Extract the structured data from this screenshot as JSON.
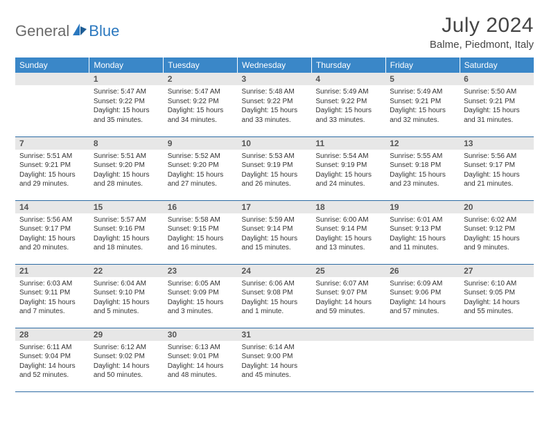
{
  "logo": {
    "general": "General",
    "blue": "Blue"
  },
  "calendar_style": {
    "header_bg": "#3a87c8",
    "header_color": "#ffffff",
    "daynum_bg": "#e7e7e7",
    "daynum_color": "#555555",
    "border_color": "#2b6aa3",
    "text_color": "#333333",
    "font_size_header": 12,
    "font_size_daynum": 12,
    "font_size_body": 10
  },
  "title": "July 2024",
  "location": "Balme, Piedmont, Italy",
  "weekdays": [
    "Sunday",
    "Monday",
    "Tuesday",
    "Wednesday",
    "Thursday",
    "Friday",
    "Saturday"
  ],
  "first_weekday_offset": 1,
  "days": [
    {
      "n": 1,
      "sunrise": "5:47 AM",
      "sunset": "9:22 PM",
      "dl_h": 15,
      "dl_m": 35
    },
    {
      "n": 2,
      "sunrise": "5:47 AM",
      "sunset": "9:22 PM",
      "dl_h": 15,
      "dl_m": 34
    },
    {
      "n": 3,
      "sunrise": "5:48 AM",
      "sunset": "9:22 PM",
      "dl_h": 15,
      "dl_m": 33
    },
    {
      "n": 4,
      "sunrise": "5:49 AM",
      "sunset": "9:22 PM",
      "dl_h": 15,
      "dl_m": 33
    },
    {
      "n": 5,
      "sunrise": "5:49 AM",
      "sunset": "9:21 PM",
      "dl_h": 15,
      "dl_m": 32
    },
    {
      "n": 6,
      "sunrise": "5:50 AM",
      "sunset": "9:21 PM",
      "dl_h": 15,
      "dl_m": 31
    },
    {
      "n": 7,
      "sunrise": "5:51 AM",
      "sunset": "9:21 PM",
      "dl_h": 15,
      "dl_m": 29
    },
    {
      "n": 8,
      "sunrise": "5:51 AM",
      "sunset": "9:20 PM",
      "dl_h": 15,
      "dl_m": 28
    },
    {
      "n": 9,
      "sunrise": "5:52 AM",
      "sunset": "9:20 PM",
      "dl_h": 15,
      "dl_m": 27
    },
    {
      "n": 10,
      "sunrise": "5:53 AM",
      "sunset": "9:19 PM",
      "dl_h": 15,
      "dl_m": 26
    },
    {
      "n": 11,
      "sunrise": "5:54 AM",
      "sunset": "9:19 PM",
      "dl_h": 15,
      "dl_m": 24
    },
    {
      "n": 12,
      "sunrise": "5:55 AM",
      "sunset": "9:18 PM",
      "dl_h": 15,
      "dl_m": 23
    },
    {
      "n": 13,
      "sunrise": "5:56 AM",
      "sunset": "9:17 PM",
      "dl_h": 15,
      "dl_m": 21
    },
    {
      "n": 14,
      "sunrise": "5:56 AM",
      "sunset": "9:17 PM",
      "dl_h": 15,
      "dl_m": 20
    },
    {
      "n": 15,
      "sunrise": "5:57 AM",
      "sunset": "9:16 PM",
      "dl_h": 15,
      "dl_m": 18
    },
    {
      "n": 16,
      "sunrise": "5:58 AM",
      "sunset": "9:15 PM",
      "dl_h": 15,
      "dl_m": 16
    },
    {
      "n": 17,
      "sunrise": "5:59 AM",
      "sunset": "9:14 PM",
      "dl_h": 15,
      "dl_m": 15
    },
    {
      "n": 18,
      "sunrise": "6:00 AM",
      "sunset": "9:14 PM",
      "dl_h": 15,
      "dl_m": 13
    },
    {
      "n": 19,
      "sunrise": "6:01 AM",
      "sunset": "9:13 PM",
      "dl_h": 15,
      "dl_m": 11
    },
    {
      "n": 20,
      "sunrise": "6:02 AM",
      "sunset": "9:12 PM",
      "dl_h": 15,
      "dl_m": 9
    },
    {
      "n": 21,
      "sunrise": "6:03 AM",
      "sunset": "9:11 PM",
      "dl_h": 15,
      "dl_m": 7
    },
    {
      "n": 22,
      "sunrise": "6:04 AM",
      "sunset": "9:10 PM",
      "dl_h": 15,
      "dl_m": 5
    },
    {
      "n": 23,
      "sunrise": "6:05 AM",
      "sunset": "9:09 PM",
      "dl_h": 15,
      "dl_m": 3
    },
    {
      "n": 24,
      "sunrise": "6:06 AM",
      "sunset": "9:08 PM",
      "dl_h": 15,
      "dl_m": 1
    },
    {
      "n": 25,
      "sunrise": "6:07 AM",
      "sunset": "9:07 PM",
      "dl_h": 14,
      "dl_m": 59
    },
    {
      "n": 26,
      "sunrise": "6:09 AM",
      "sunset": "9:06 PM",
      "dl_h": 14,
      "dl_m": 57
    },
    {
      "n": 27,
      "sunrise": "6:10 AM",
      "sunset": "9:05 PM",
      "dl_h": 14,
      "dl_m": 55
    },
    {
      "n": 28,
      "sunrise": "6:11 AM",
      "sunset": "9:04 PM",
      "dl_h": 14,
      "dl_m": 52
    },
    {
      "n": 29,
      "sunrise": "6:12 AM",
      "sunset": "9:02 PM",
      "dl_h": 14,
      "dl_m": 50
    },
    {
      "n": 30,
      "sunrise": "6:13 AM",
      "sunset": "9:01 PM",
      "dl_h": 14,
      "dl_m": 48
    },
    {
      "n": 31,
      "sunrise": "6:14 AM",
      "sunset": "9:00 PM",
      "dl_h": 14,
      "dl_m": 45
    }
  ]
}
